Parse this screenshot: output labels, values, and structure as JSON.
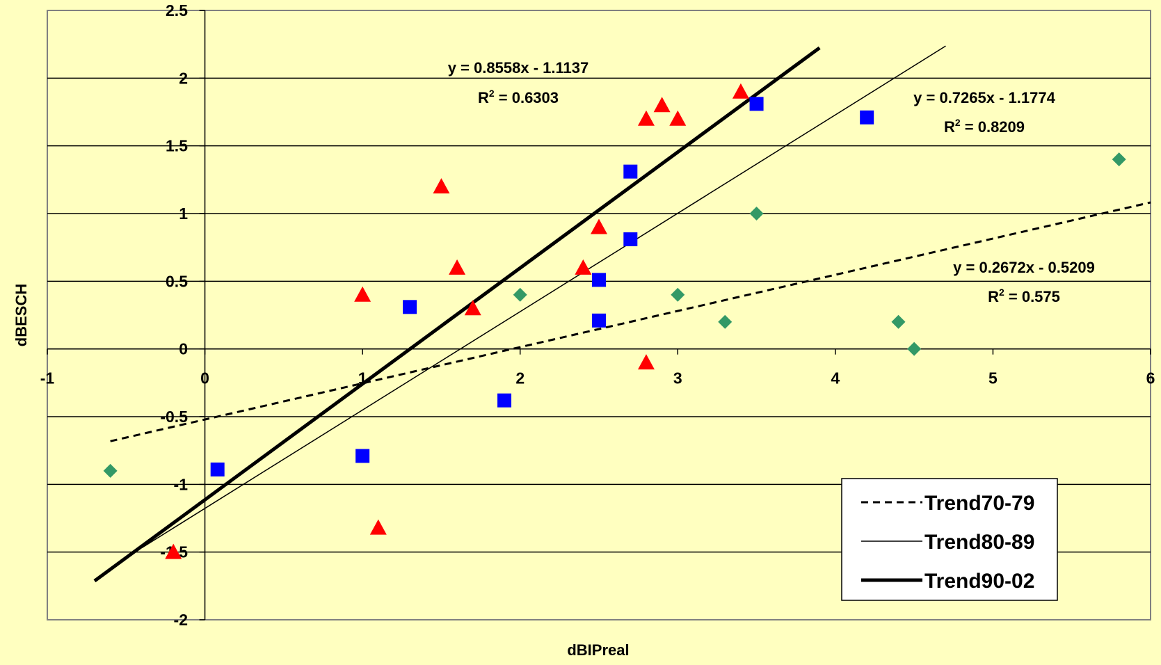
{
  "chart_data": {
    "type": "scatter",
    "title": "",
    "xlabel": "dBIPreal",
    "ylabel": "dBESCH",
    "xlim": [
      -1,
      6
    ],
    "ylim": [
      -2,
      2.5
    ],
    "grid": "horizontal",
    "legend_position": "bottom-right",
    "x_ticks": [
      "-1",
      "0",
      "1",
      "2",
      "3",
      "4",
      "5",
      "6"
    ],
    "y_ticks": [
      "-2",
      "-1.5",
      "-1",
      "-0.5",
      "0",
      "0.5",
      "1",
      "1.5",
      "2",
      "2.5"
    ],
    "colors": {
      "background": "#ffffc0",
      "plot_area": "#ffffc0",
      "grid": "#000000",
      "green_marker": "#339966",
      "red_marker": "#ff0000",
      "blue_marker": "#0000ff"
    },
    "point_series": [
      {
        "marker": "diamond",
        "color": "#339966",
        "points": [
          [
            -0.6,
            -0.9
          ],
          [
            2.0,
            0.4
          ],
          [
            3.0,
            0.4
          ],
          [
            3.3,
            0.2
          ],
          [
            3.5,
            1.0
          ],
          [
            4.4,
            0.2
          ],
          [
            4.5,
            0.0
          ],
          [
            5.8,
            1.4
          ]
        ]
      },
      {
        "marker": "square",
        "color": "#0000ff",
        "points": [
          [
            0.08,
            -0.89
          ],
          [
            1.0,
            -0.79
          ],
          [
            1.3,
            0.31
          ],
          [
            1.9,
            -0.38
          ],
          [
            2.5,
            0.51
          ],
          [
            2.5,
            0.21
          ],
          [
            2.7,
            1.31
          ],
          [
            2.7,
            0.81
          ],
          [
            3.5,
            1.81
          ],
          [
            4.2,
            1.71
          ]
        ]
      },
      {
        "marker": "triangle",
        "color": "#ff0000",
        "points": [
          [
            -0.2,
            -1.5
          ],
          [
            1.0,
            0.4
          ],
          [
            1.1,
            -1.32
          ],
          [
            1.5,
            1.2
          ],
          [
            1.6,
            0.6
          ],
          [
            1.7,
            0.3
          ],
          [
            2.4,
            0.6
          ],
          [
            2.5,
            0.9
          ],
          [
            2.8,
            1.7
          ],
          [
            2.8,
            -0.1
          ],
          [
            2.9,
            1.8
          ],
          [
            3.0,
            1.7
          ],
          [
            3.4,
            1.9
          ]
        ]
      }
    ],
    "trendlines": [
      {
        "name": "Trend70-79",
        "style": "dashed",
        "slope": 0.2672,
        "intercept": -0.5209,
        "x_range": [
          -0.6,
          6.0
        ],
        "equation": "y = 0.2672x - 0.5209",
        "r2_label": "R",
        "r2_value": " = 0.575"
      },
      {
        "name": "Trend80-89",
        "style": "thin",
        "slope": 0.7265,
        "intercept": -1.1774,
        "x_range": [
          -0.4,
          4.7
        ],
        "equation": "y = 0.7265x - 1.1774",
        "r2_label": "R",
        "r2_value": " = 0.8209"
      },
      {
        "name": "Trend90-02",
        "style": "thick",
        "slope": 0.8558,
        "intercept": -1.1137,
        "x_range": [
          -0.7,
          3.9
        ],
        "equation": "y = 0.8558x - 1.1137",
        "r2_label": "R",
        "r2_value": " = 0.6303"
      }
    ],
    "r2_superscript": "2",
    "legend": [
      "Trend70-79",
      "Trend80-89",
      "Trend90-02"
    ]
  }
}
